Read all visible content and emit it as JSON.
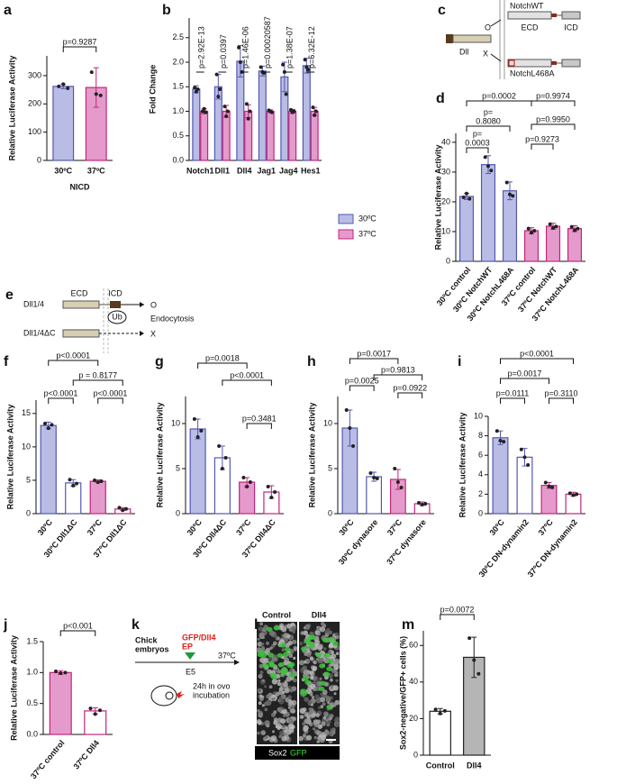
{
  "chart_data": [
    {
      "panel": "a",
      "type": "bar",
      "categories": [
        "30ºC",
        "37ºC"
      ],
      "values": [
        262,
        258
      ],
      "errors": [
        8,
        70
      ],
      "points": [
        [
          262,
          270,
          255
        ],
        [
          312,
          235,
          230
        ]
      ],
      "colors": [
        "#b9bde6",
        "#e49bcb"
      ],
      "edge_colors": [
        "#5458b0",
        "#c2257b"
      ],
      "ylim": [
        0,
        370
      ],
      "yticks": [
        0,
        100,
        200,
        300
      ],
      "y_label": "Relative Luciferase Activity",
      "x_label": "NICD",
      "annotations": [
        "p=0.9287"
      ]
    },
    {
      "panel": "b",
      "type": "grouped_bar",
      "categories": [
        "Notch1",
        "Dll1",
        "Dll4",
        "Jag1",
        "Jag4",
        "Hes1"
      ],
      "series": [
        {
          "name": "30ºC",
          "color": "#b9bde6",
          "edge_color": "#5458b0",
          "values": [
            1.45,
            1.5,
            2.02,
            1.82,
            1.7,
            1.93
          ],
          "errors": [
            0.07,
            0.25,
            0.32,
            0.1,
            0.3,
            0.15
          ],
          "points": [
            [
              1.48,
              1.4,
              1.45
            ],
            [
              1.75,
              1.3,
              1.45
            ],
            [
              2.3,
              2.0,
              1.8
            ],
            [
              1.9,
              1.8,
              1.78
            ],
            [
              1.95,
              1.8,
              1.35
            ],
            [
              2.05,
              1.9,
              1.85
            ]
          ]
        },
        {
          "name": "37ºC",
          "color": "#e49bcb",
          "edge_color": "#c2257b",
          "values": [
            1.0,
            1.0,
            1.0,
            1.0,
            1.0,
            1.0
          ],
          "errors": [
            0.05,
            0.12,
            0.13,
            0.03,
            0.04,
            0.08
          ],
          "points": [
            [
              1.0,
              1.05,
              0.98
            ],
            [
              1.1,
              0.9,
              1.0
            ],
            [
              1.15,
              0.85,
              1.0
            ],
            [
              1.02,
              1.0,
              0.98
            ],
            [
              1.03,
              0.98,
              1.0
            ],
            [
              1.08,
              0.92,
              1.0
            ]
          ]
        }
      ],
      "ylim": [
        0,
        2.9
      ],
      "yticks": [
        {
          "value": 0,
          "label": "0.0"
        },
        0.5,
        {
          "value": 1,
          "label": "1.0"
        },
        1.5,
        {
          "value": 2,
          "label": "2.0"
        },
        2.5
      ],
      "y_label": "Fold Change",
      "annotations": [
        "p=2.92E-13",
        "p=0.0397",
        "p=1.46E-06",
        "p=0.00020587",
        "p=1.38E-07",
        "p=6.32E-12"
      ]
    },
    {
      "panel": "d",
      "type": "bar",
      "categories": [
        "30ºC control",
        "30ºC NotchWT",
        "30ºC NotchL468A",
        "37ºC control",
        "37ºC NotchWT",
        "37ºC NotchL468A"
      ],
      "values": [
        21.8,
        32.5,
        23.7,
        10.3,
        11.8,
        11
      ],
      "errors": [
        1,
        3,
        3,
        1,
        1,
        1
      ],
      "points": [
        [
          21.5,
          22.8,
          21
        ],
        [
          35,
          32,
          30.5
        ],
        [
          26.5,
          22.5,
          22
        ],
        [
          11,
          9.6,
          10.3
        ],
        [
          12.5,
          11.2,
          11.7
        ],
        [
          11.6,
          10.4,
          11
        ]
      ],
      "colors": [
        "#b9bde6",
        "#b9bde6",
        "#b9bde6",
        "#e49bcb",
        "#e49bcb",
        "#e49bcb"
      ],
      "edge_colors": [
        "#5458b0",
        "#5458b0",
        "#5458b0",
        "#c2257b",
        "#c2257b",
        "#c2257b"
      ],
      "ylim": [
        0,
        43
      ],
      "yticks": [
        0,
        10,
        20,
        30,
        40
      ],
      "y_label": "Relative Luciferase Activity",
      "annotations": [
        "p=0.0002",
        "p=0.9974",
        [
          "p=",
          "0.8080"
        ],
        [
          "p=",
          "0.0003"
        ],
        "p=0.9273",
        "p=0.9950"
      ]
    },
    {
      "panel": "f",
      "type": "bar",
      "categories": [
        "30ºC",
        "30ºC Dll1ΔC",
        "37ºC",
        "37ºC Dll1ΔC"
      ],
      "values": [
        13.2,
        4.6,
        4.85,
        0.7
      ],
      "errors": [
        0.5,
        0.5,
        0.2,
        0.2
      ],
      "points": [
        [
          13.5,
          12.8,
          13.3
        ],
        [
          5.1,
          4.2,
          4.5
        ],
        [
          5,
          4.7,
          4.85
        ],
        [
          0.9,
          0.5,
          0.7
        ]
      ],
      "colors": [
        "#b9bde6",
        "#ffffff",
        "#e49bcb",
        "#ffffff"
      ],
      "edge_colors": [
        "#5458b0",
        "#5458b0",
        "#c2257b",
        "#c2257b"
      ],
      "ylim": [
        0,
        17
      ],
      "yticks": [
        0,
        5,
        10,
        15
      ],
      "y_label": "Relative Luciferase Activity",
      "annotations": [
        "p<0.0001",
        "p = 0.8177",
        "p<0.0001",
        "p<0.0001"
      ]
    },
    {
      "panel": "g",
      "type": "bar",
      "categories": [
        "30ºC",
        "30ºC Dll4ΔC",
        "37ºC",
        "37ºC Dll4ΔC"
      ],
      "values": [
        9.4,
        6.2,
        3.5,
        2.4
      ],
      "errors": [
        1.1,
        1.3,
        0.5,
        0.7
      ],
      "points": [
        [
          10.5,
          8.5,
          9.2
        ],
        [
          7.5,
          5,
          6.2
        ],
        [
          4,
          3,
          3.5
        ],
        [
          3,
          1.8,
          2.4
        ]
      ],
      "colors": [
        "#b9bde6",
        "#ffffff",
        "#e49bcb",
        "#ffffff"
      ],
      "edge_colors": [
        "#5458b0",
        "#5458b0",
        "#c2257b",
        "#c2257b"
      ],
      "ylim": [
        0,
        13
      ],
      "yticks": [
        0,
        5,
        10
      ],
      "y_label": "Relative Luciferase Activity",
      "annotations": [
        "p=0.0018",
        "p<0.0001",
        "p=0.3481"
      ]
    },
    {
      "panel": "h",
      "type": "bar",
      "categories": [
        "30ºC",
        "30ºC dynasore",
        "37ºC",
        "37ºC dynasore"
      ],
      "values": [
        9.5,
        4.1,
        3.8,
        1.1
      ],
      "errors": [
        2,
        0.5,
        1.1,
        0.2
      ],
      "points": [
        [
          11.5,
          9.5,
          7.5
        ],
        [
          4.5,
          4,
          3.9
        ],
        [
          5,
          3.5,
          2.9
        ],
        [
          1.2,
          1,
          1.1
        ]
      ],
      "colors": [
        "#b9bde6",
        "#ffffff",
        "#e49bcb",
        "#ffffff"
      ],
      "edge_colors": [
        "#5458b0",
        "#5458b0",
        "#c2257b",
        "#c2257b"
      ],
      "ylim": [
        0,
        13
      ],
      "yticks": [
        0,
        5,
        10
      ],
      "y_label": "Relative Luciferase Activity",
      "annotations": [
        "p=0.0017",
        "p=0.0025",
        "p=0.9813",
        "p=0.0922"
      ]
    },
    {
      "panel": "i",
      "type": "bar",
      "categories": [
        "30ºC",
        "30ºC DN-dynamin2",
        "37ºC",
        "37ºC DN-dynamin2"
      ],
      "values": [
        7.8,
        5.8,
        2.9,
        2.0
      ],
      "errors": [
        0.7,
        0.9,
        0.3,
        0.2
      ],
      "points": [
        [
          8.5,
          7.5,
          7.4
        ],
        [
          6.6,
          5.8,
          5
        ],
        [
          3.2,
          2.8,
          2.7
        ],
        [
          2.1,
          1.9,
          2
        ]
      ],
      "colors": [
        "#b9bde6",
        "#ffffff",
        "#e49bcb",
        "#ffffff"
      ],
      "edge_colors": [
        "#5458b0",
        "#5458b0",
        "#c2257b",
        "#c2257b"
      ],
      "ylim": [
        0,
        10
      ],
      "yticks": [
        0,
        2,
        4,
        6,
        8,
        10
      ],
      "y_label": "Relative Luciferase Activity",
      "annotations": [
        "p<0.0001",
        "p=0.0017",
        "p=0.0111",
        "p=0.3110"
      ]
    },
    {
      "panel": "j",
      "type": "bar",
      "categories": [
        "37ºC control",
        "37ºC Dll4"
      ],
      "values": [
        1.0,
        0.38
      ],
      "errors": [
        0.03,
        0.05
      ],
      "points": [
        [
          1.02,
          0.99,
          1.0
        ],
        [
          0.42,
          0.33,
          0.39
        ]
      ],
      "colors": [
        "#e49bcb",
        "#ffffff"
      ],
      "edge_colors": [
        "#c2257b",
        "#c2257b"
      ],
      "ylim": [
        0,
        1.5
      ],
      "yticks": [
        {
          "value": 0,
          "label": "0.0"
        },
        0.5,
        {
          "value": 1,
          "label": "1.0"
        },
        1.5
      ],
      "y_label": "Relative Luciferase Activity",
      "annotations": [
        "p<0.001"
      ]
    },
    {
      "panel": "m",
      "type": "bar",
      "categories": [
        "Control",
        "Dll4"
      ],
      "values": [
        24,
        53.5
      ],
      "errors": [
        1.5,
        11
      ],
      "points": [
        [
          25,
          22.8,
          24.2
        ],
        [
          64,
          52,
          44.5
        ]
      ],
      "colors": [
        "#ffffff",
        "#b5b5b5"
      ],
      "edge_colors": [
        "#222222",
        "#222222"
      ],
      "ylim": [
        0,
        68
      ],
      "yticks": [
        0,
        20,
        40,
        60
      ],
      "y_label": "Sox2-negative/GFP+ cells (%)",
      "annotations": [
        "p=0.0072"
      ]
    }
  ],
  "diagrams": {
    "c": {
      "panel": "c",
      "notch_wt": "NotchWT",
      "ecd": "ECD",
      "icd": "ICD",
      "ligand": "Dll",
      "bind_yes": "O",
      "bind_no": "X",
      "notch_mutant": "NotchL468A"
    },
    "e": {
      "panel": "e",
      "ligand": "Dll1/4",
      "ecd": "ECD",
      "icd": "ICD",
      "ub": "Ub",
      "yes": "O",
      "endocytosis": "Endocytosis",
      "mutant": "Dll1/4ΔC",
      "no": "X"
    },
    "k": {
      "panel": "k",
      "host": [
        "Chick",
        "embryos"
      ],
      "construct": "GFP/Dll4",
      "method": "EP",
      "temperature": "37ºC",
      "stage": "E5",
      "incubation": [
        "24h in ovo",
        "incubation"
      ]
    },
    "l": {
      "panel": "l",
      "conditions": [
        "Control",
        "Dll4"
      ],
      "stain_1": "Sox2",
      "stain_2": "GFP"
    }
  }
}
